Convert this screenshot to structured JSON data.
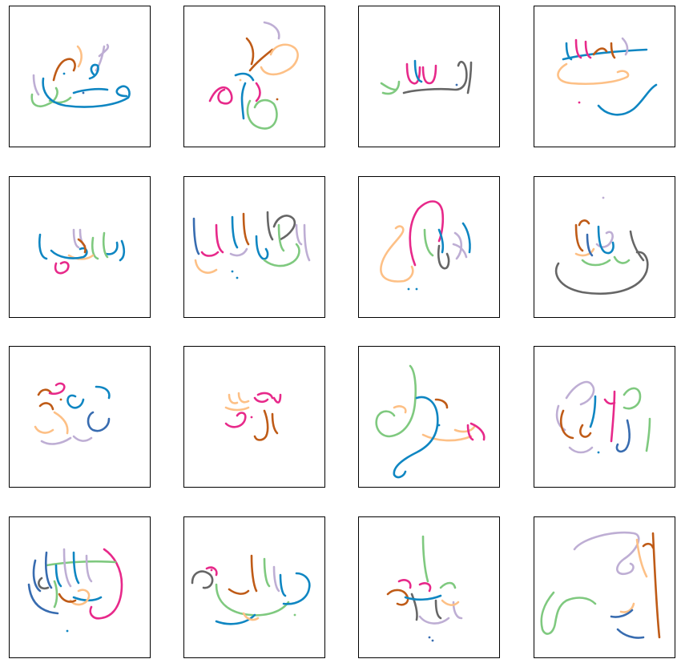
{
  "palette": {
    "green": "#7fc97f",
    "peach": "#fdc086",
    "lavender": "#beaed4",
    "blue": "#0f86c2",
    "magenta": "#e7298a",
    "brown": "#bf5b17",
    "grey": "#666666",
    "navy": "#386cb0"
  },
  "tiles": [
    {
      "strokes": 7,
      "colors": [
        "lavender",
        "brown",
        "peach",
        "blue",
        "green",
        "blue",
        "lavender"
      ]
    },
    {
      "strokes": 7,
      "colors": [
        "magenta",
        "brown",
        "peach",
        "blue",
        "green",
        "lavender",
        "magenta"
      ]
    },
    {
      "strokes": 5,
      "colors": [
        "green",
        "magenta",
        "blue",
        "grey",
        "grey"
      ]
    },
    {
      "strokes": 6,
      "colors": [
        "blue",
        "magenta",
        "brown",
        "lavender",
        "peach",
        "blue"
      ]
    },
    {
      "strokes": 7,
      "colors": [
        "blue",
        "magenta",
        "green",
        "lavender",
        "peach",
        "blue",
        "brown"
      ]
    },
    {
      "strokes": 9,
      "colors": [
        "navy",
        "peach",
        "magenta",
        "lavender",
        "blue",
        "brown",
        "grey",
        "green",
        "lavender"
      ]
    },
    {
      "strokes": 7,
      "colors": [
        "peach",
        "magenta",
        "green",
        "grey",
        "lavender",
        "blue",
        "blue"
      ]
    },
    {
      "strokes": 7,
      "colors": [
        "grey",
        "brown",
        "peach",
        "lavender",
        "blue",
        "green",
        "navy"
      ]
    },
    {
      "strokes": 6,
      "colors": [
        "brown",
        "magenta",
        "blue",
        "peach",
        "navy",
        "lavender"
      ]
    },
    {
      "strokes": 4,
      "colors": [
        "magenta",
        "peach",
        "magenta",
        "brown"
      ]
    },
    {
      "strokes": 6,
      "colors": [
        "green",
        "peach",
        "blue",
        "magenta",
        "peach",
        "brown"
      ]
    },
    {
      "strokes": 7,
      "colors": [
        "lavender",
        "blue",
        "magenta",
        "brown",
        "green",
        "navy",
        "lavender"
      ]
    },
    {
      "strokes": 9,
      "colors": [
        "magenta",
        "green",
        "navy",
        "lavender",
        "grey",
        "blue",
        "peach",
        "brown",
        "blue"
      ]
    },
    {
      "strokes": 7,
      "colors": [
        "grey",
        "brown",
        "green",
        "blue",
        "magenta",
        "peach",
        "lavender"
      ]
    },
    {
      "strokes": 7,
      "colors": [
        "green",
        "brown",
        "magenta",
        "grey",
        "lavender",
        "blue",
        "peach"
      ]
    },
    {
      "strokes": 5,
      "colors": [
        "lavender",
        "peach",
        "green",
        "navy",
        "brown"
      ]
    }
  ]
}
